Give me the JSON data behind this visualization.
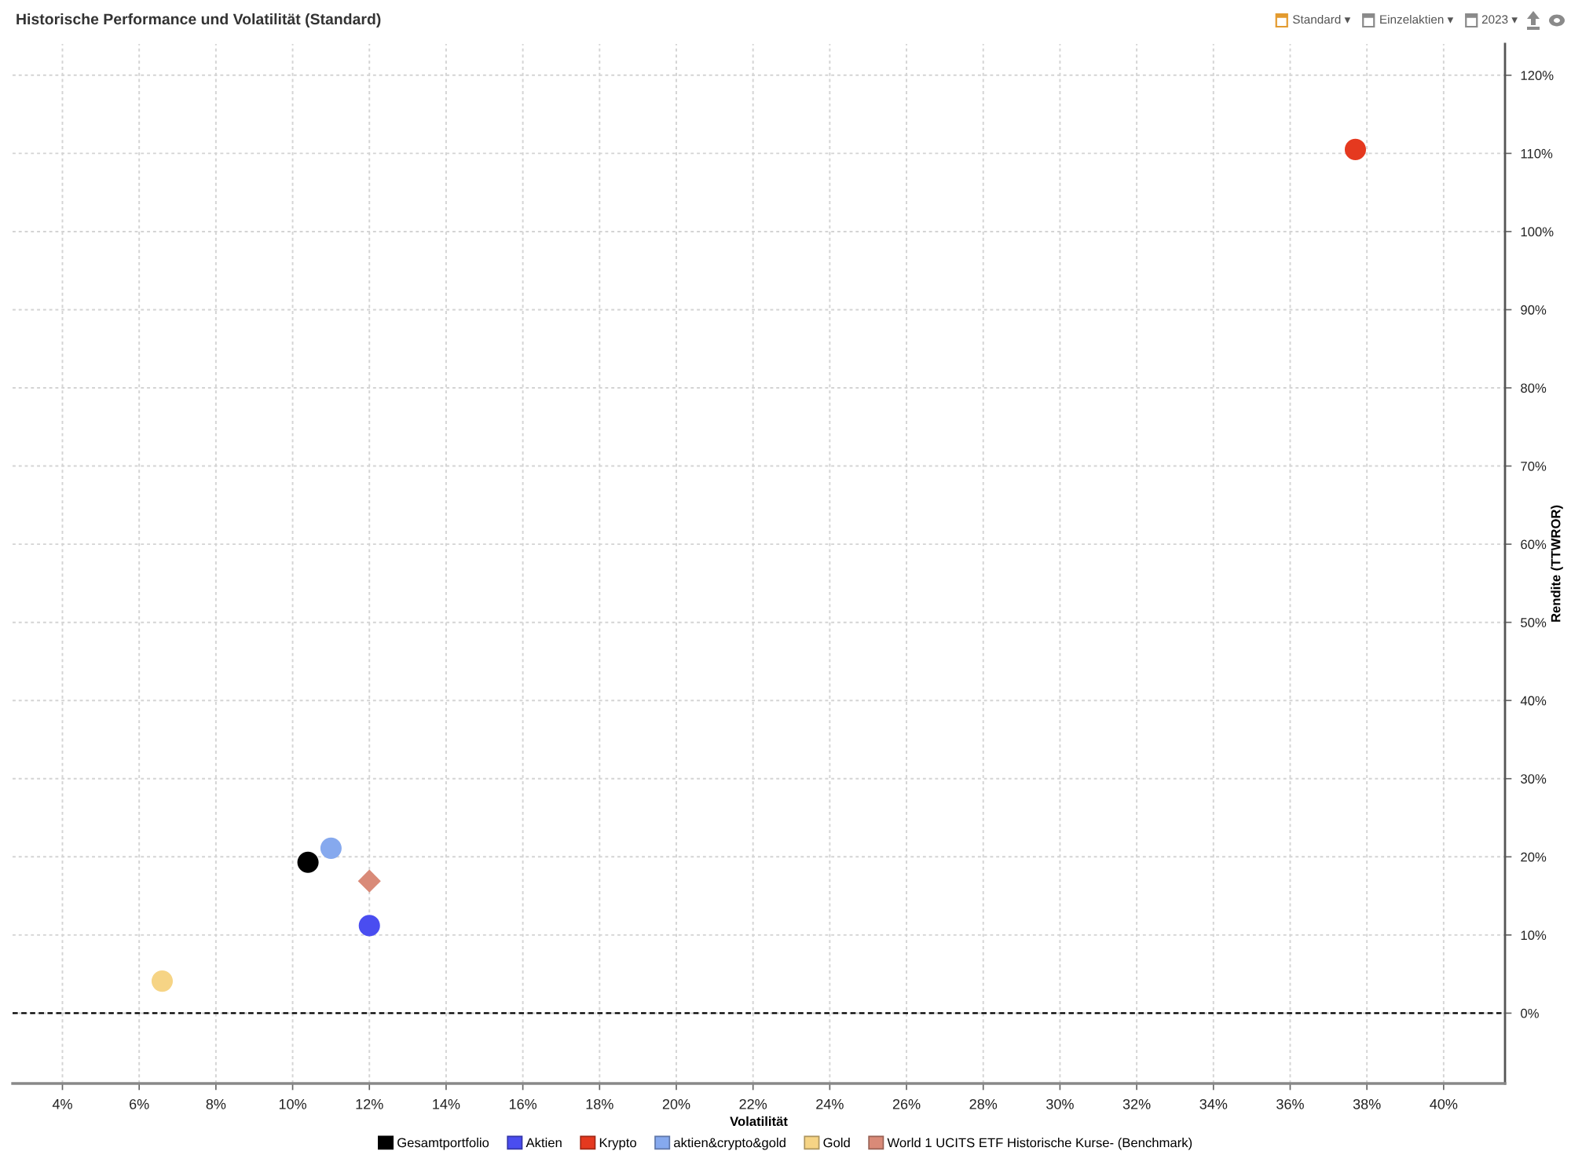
{
  "chart_data": {
    "type": "scatter",
    "title": "Historische Performance und Volatilität (Standard)",
    "xlabel": "Volatilität",
    "ylabel": "Rendite (TTWROR)",
    "annotations": [
      "Standard ▾",
      "Einzelaktien ▾",
      "2023 ▾"
    ],
    "series": [
      {
        "name": "Gesamtportfolio",
        "color": "#000000",
        "x": [
          10.4
        ],
        "values": [
          19.3
        ]
      },
      {
        "name": "Aktien",
        "color": "#4a4df0",
        "x": [
          12.0
        ],
        "values": [
          11.2
        ]
      },
      {
        "name": "Krypto",
        "color": "#e5391f",
        "x": [
          37.7
        ],
        "values": [
          110.5
        ]
      },
      {
        "name": "aktien&crypto&gold",
        "color": "#86a9ee",
        "x": [
          11.0
        ],
        "values": [
          21.1
        ]
      },
      {
        "name": "Gold",
        "color": "#f6d485",
        "x": [
          6.6
        ],
        "values": [
          4.1
        ]
      },
      {
        "name": "World 1 UCITS ETF Historische Kurse- (Benchmark)",
        "color": "#d98a78",
        "x": [
          12.0
        ],
        "values": [
          16.9
        ],
        "marker": "diamond"
      }
    ],
    "marker": "circle",
    "xlim": [
      2.7,
      41.6
    ],
    "ylim": [
      -9,
      124
    ],
    "xticks": [
      {
        "value": 4,
        "label": "4%"
      },
      {
        "value": 6,
        "label": "6%"
      },
      {
        "value": 8,
        "label": "8%"
      },
      {
        "value": 10,
        "label": "10%"
      },
      {
        "value": 12,
        "label": "12%"
      },
      {
        "value": 14,
        "label": "14%"
      },
      {
        "value": 16,
        "label": "16%"
      },
      {
        "value": 18,
        "label": "18%"
      },
      {
        "value": 20,
        "label": "20%"
      },
      {
        "value": 22,
        "label": "22%"
      },
      {
        "value": 24,
        "label": "24%"
      },
      {
        "value": 26,
        "label": "26%"
      },
      {
        "value": 28,
        "label": "28%"
      },
      {
        "value": 30,
        "label": "30%"
      },
      {
        "value": 32,
        "label": "32%"
      },
      {
        "value": 34,
        "label": "34%"
      },
      {
        "value": 36,
        "label": "36%"
      },
      {
        "value": 38,
        "label": "38%"
      },
      {
        "value": 40,
        "label": "40%"
      }
    ],
    "yticks": [
      {
        "value": 0,
        "label": "0%"
      },
      {
        "value": 10,
        "label": "10%"
      },
      {
        "value": 20,
        "label": "20%"
      },
      {
        "value": 30,
        "label": "30%"
      },
      {
        "value": 40,
        "label": "40%"
      },
      {
        "value": 50,
        "label": "50%"
      },
      {
        "value": 60,
        "label": "60%"
      },
      {
        "value": 70,
        "label": "70%"
      },
      {
        "value": 80,
        "label": "80%"
      },
      {
        "value": 90,
        "label": "90%"
      },
      {
        "value": 100,
        "label": "100%"
      },
      {
        "value": 110,
        "label": "110%"
      },
      {
        "value": 120,
        "label": "120%"
      }
    ],
    "ref_lines": [
      {
        "axis": "y",
        "value": 0,
        "color": "#000000",
        "line_style": "dashed"
      }
    ],
    "grid": true,
    "legend": "bottom"
  }
}
